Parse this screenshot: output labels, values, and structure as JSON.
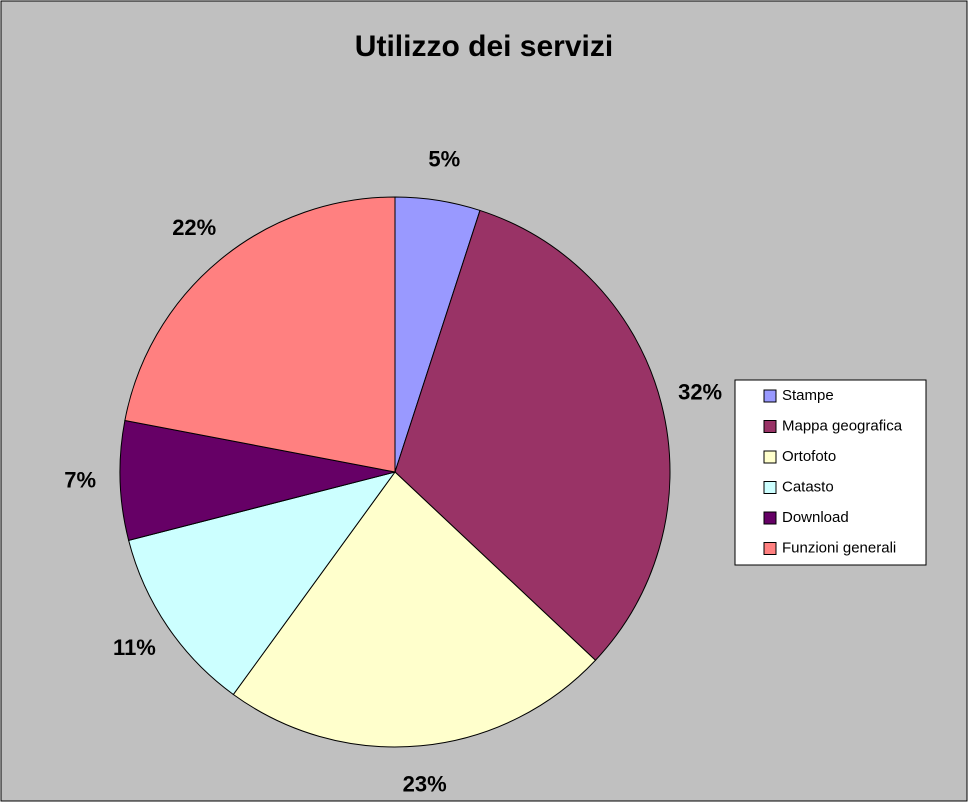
{
  "chart_data": {
    "type": "pie",
    "title": "Utilizzo dei servizi",
    "categories": [
      "Stampe",
      "Mappa geografica",
      "Ortofoto",
      "Catasto",
      "Download",
      "Funzioni generali"
    ],
    "values": [
      5,
      32,
      23,
      11,
      7,
      22
    ],
    "value_labels": [
      "5%",
      "32%",
      "23%",
      "11%",
      "7%",
      "22%"
    ],
    "colors": [
      "#9999ff",
      "#993366",
      "#ffffcc",
      "#ccffff",
      "#660066",
      "#ff8080"
    ],
    "legend": "right"
  }
}
